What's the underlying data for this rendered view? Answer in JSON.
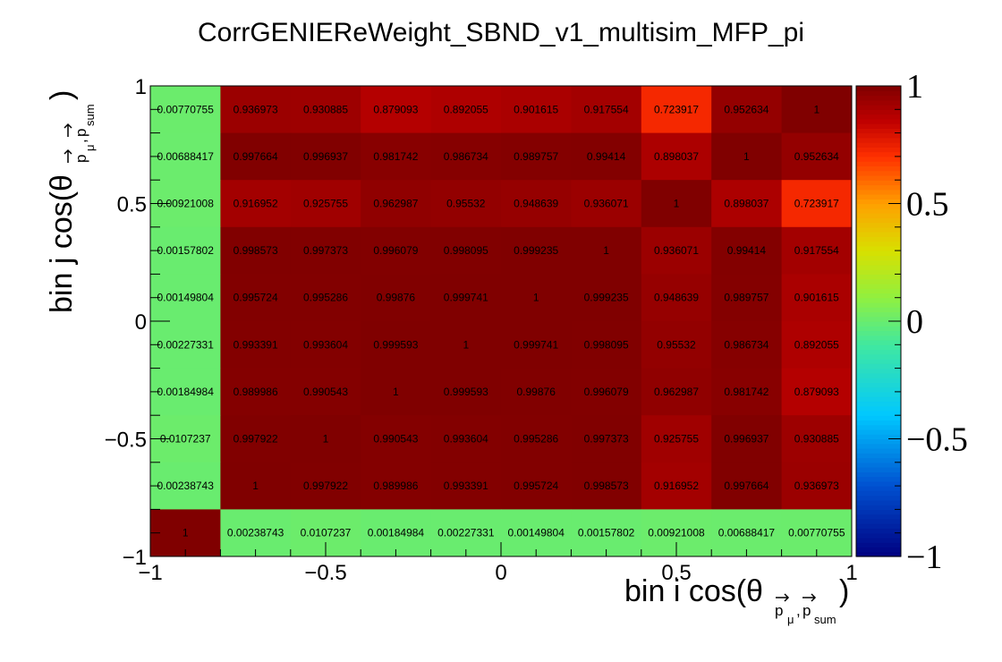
{
  "chart_data": {
    "type": "heatmap",
    "title": "CorrGENIEReWeight_SBND_v1_multisim_MFP_pi",
    "xlabel": "bin i cos(θ",
    "xlabel_sub": "p_μ,p_sum",
    "xlabel_sub_parts": [
      "p",
      "μ",
      ",",
      "p",
      "sum"
    ],
    "xlabel_close": ")",
    "ylabel": "bin j cos(θ",
    "ylabel_sub_parts": [
      "p",
      "μ",
      ",",
      "p",
      "sum"
    ],
    "ylabel_close": ")",
    "xlim": [
      -1,
      1
    ],
    "ylim": [
      -1,
      1
    ],
    "zlim": [
      -1,
      1
    ],
    "x_ticks": [
      "−1",
      "−0.5",
      "0",
      "0.5",
      "1"
    ],
    "y_ticks": [
      "−1",
      "−0.5",
      "0",
      "0.5",
      "1"
    ],
    "z_ticks": [
      "−1",
      "−0.5",
      "0",
      "0.5",
      "1"
    ],
    "n_bins": 10,
    "rows_top_to_bottom": [
      [
        "0.00770755",
        "0.936973",
        "0.930885",
        "0.879093",
        "0.892055",
        "0.901615",
        "0.917554",
        "0.723917",
        "0.952634",
        "1"
      ],
      [
        "0.00688417",
        "0.997664",
        "0.996937",
        "0.981742",
        "0.986734",
        "0.989757",
        "0.99414",
        "0.898037",
        "1",
        "0.952634"
      ],
      [
        "0.00921008",
        "0.916952",
        "0.925755",
        "0.962987",
        "0.95532",
        "0.948639",
        "0.936071",
        "1",
        "0.898037",
        "0.723917"
      ],
      [
        "0.00157802",
        "0.998573",
        "0.997373",
        "0.996079",
        "0.998095",
        "0.999235",
        "1",
        "0.936071",
        "0.99414",
        "0.917554"
      ],
      [
        "0.00149804",
        "0.995724",
        "0.995286",
        "0.99876",
        "0.999741",
        "1",
        "0.999235",
        "0.948639",
        "0.989757",
        "0.901615"
      ],
      [
        "0.00227331",
        "0.993391",
        "0.993604",
        "0.999593",
        "1",
        "0.999741",
        "0.998095",
        "0.95532",
        "0.986734",
        "0.892055"
      ],
      [
        "0.00184984",
        "0.989986",
        "0.990543",
        "1",
        "0.999593",
        "0.99876",
        "0.996079",
        "0.962987",
        "0.981742",
        "0.879093"
      ],
      [
        "0.0107237",
        "0.997922",
        "1",
        "0.990543",
        "0.993604",
        "0.995286",
        "0.997373",
        "0.925755",
        "0.996937",
        "0.930885"
      ],
      [
        "0.00238743",
        "1",
        "0.997922",
        "0.989986",
        "0.993391",
        "0.995724",
        "0.998573",
        "0.916952",
        "0.997664",
        "0.936973"
      ],
      [
        "1",
        "0.00238743",
        "0.0107237",
        "0.00184984",
        "0.00227331",
        "0.00149804",
        "0.00157802",
        "0.00921008",
        "0.00688417",
        "0.00770755"
      ]
    ],
    "colormap": {
      "name": "ROOT kRainBow",
      "stops": [
        {
          "v": -1.0,
          "color": "#000080"
        },
        {
          "v": -0.7,
          "color": "#0050d0"
        },
        {
          "v": -0.4,
          "color": "#00c8ff"
        },
        {
          "v": -0.1,
          "color": "#40e8a0"
        },
        {
          "v": 0.1,
          "color": "#90f040"
        },
        {
          "v": 0.3,
          "color": "#d8e000"
        },
        {
          "v": 0.5,
          "color": "#ffa000"
        },
        {
          "v": 0.7,
          "color": "#ff3000"
        },
        {
          "v": 0.85,
          "color": "#c00000"
        },
        {
          "v": 1.0,
          "color": "#800000"
        }
      ]
    },
    "grid": false,
    "legend": "colorbar-right"
  }
}
